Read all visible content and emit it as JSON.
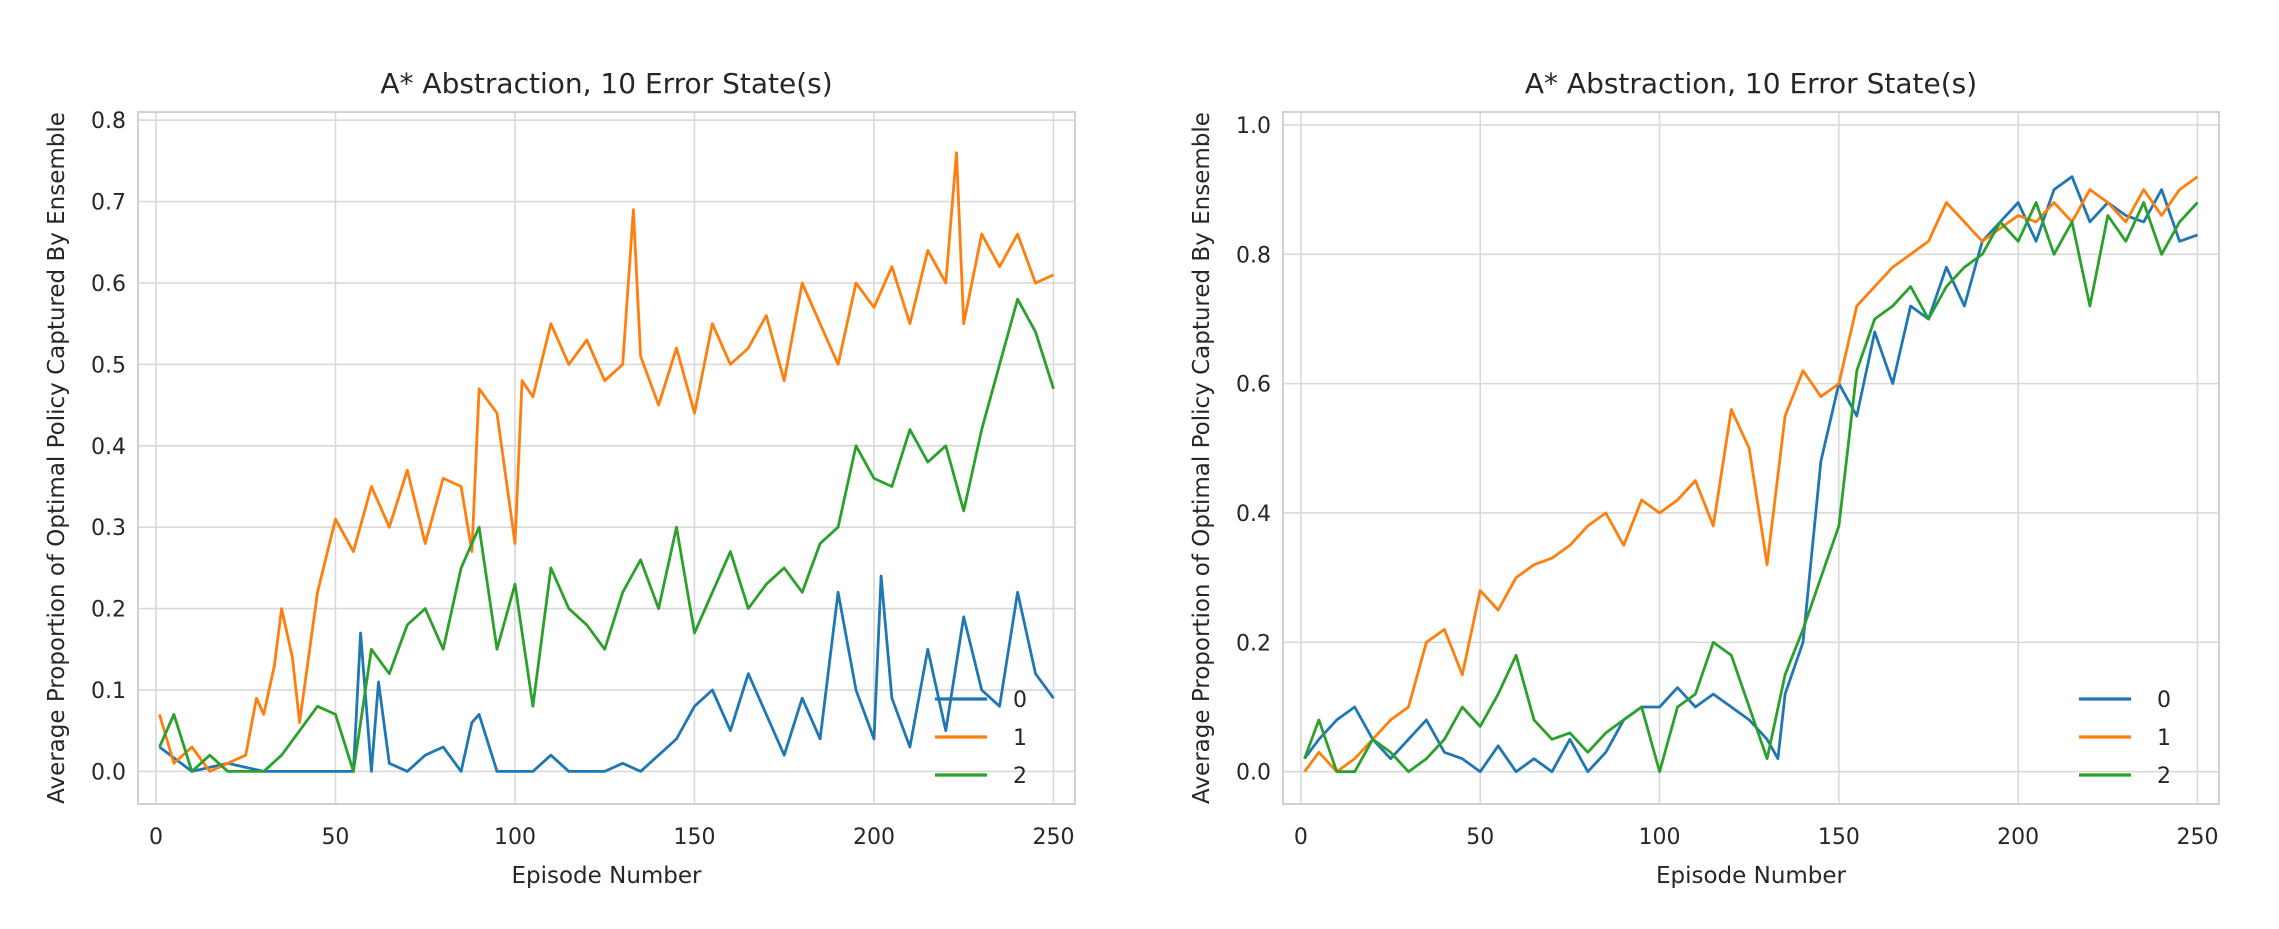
{
  "chart_data": [
    {
      "type": "line",
      "title": "A* Abstraction, 10 Error State(s)",
      "xlabel": "Episode Number",
      "ylabel": "Average Proportion of Optimal Policy Captured By Ensemble",
      "xlim": [
        -5,
        256
      ],
      "ylim": [
        -0.04,
        0.81
      ],
      "xticks": [
        0,
        50,
        100,
        150,
        200,
        250
      ],
      "yticks": [
        0.0,
        0.1,
        0.2,
        0.3,
        0.4,
        0.5,
        0.6,
        0.7,
        0.8
      ],
      "ytick_labels": [
        "0.0",
        "0.1",
        "0.2",
        "0.3",
        "0.4",
        "0.5",
        "0.6",
        "0.7",
        "0.8"
      ],
      "grid": true,
      "legend_position": "lower-right",
      "series": [
        {
          "name": "0",
          "color": "#1f77b4",
          "x": [
            1,
            10,
            20,
            30,
            40,
            50,
            55,
            57,
            60,
            62,
            65,
            70,
            75,
            80,
            85,
            88,
            90,
            95,
            100,
            105,
            110,
            115,
            120,
            125,
            130,
            135,
            140,
            145,
            150,
            155,
            160,
            165,
            170,
            175,
            180,
            185,
            190,
            195,
            200,
            202,
            205,
            210,
            215,
            220,
            225,
            230,
            235,
            240,
            245,
            250
          ],
          "y": [
            0.03,
            0.0,
            0.01,
            0.0,
            0.0,
            0.0,
            0.0,
            0.17,
            0.0,
            0.11,
            0.01,
            0.0,
            0.02,
            0.03,
            0.0,
            0.06,
            0.07,
            0.0,
            0.0,
            0.0,
            0.02,
            0.0,
            0.0,
            0.0,
            0.01,
            0.0,
            0.02,
            0.04,
            0.08,
            0.1,
            0.05,
            0.12,
            0.07,
            0.02,
            0.09,
            0.04,
            0.22,
            0.1,
            0.04,
            0.24,
            0.09,
            0.03,
            0.15,
            0.05,
            0.19,
            0.1,
            0.08,
            0.22,
            0.12,
            0.09
          ]
        },
        {
          "name": "1",
          "color": "#ff7f0e",
          "x": [
            1,
            5,
            10,
            15,
            20,
            25,
            28,
            30,
            33,
            35,
            38,
            40,
            45,
            50,
            55,
            60,
            65,
            70,
            75,
            80,
            85,
            88,
            90,
            95,
            100,
            102,
            105,
            110,
            115,
            120,
            125,
            130,
            133,
            135,
            140,
            145,
            150,
            155,
            160,
            165,
            170,
            175,
            180,
            185,
            190,
            195,
            200,
            205,
            210,
            215,
            220,
            223,
            225,
            230,
            235,
            240,
            245,
            250
          ],
          "y": [
            0.07,
            0.01,
            0.03,
            0.0,
            0.01,
            0.02,
            0.09,
            0.07,
            0.13,
            0.2,
            0.14,
            0.06,
            0.22,
            0.31,
            0.27,
            0.35,
            0.3,
            0.37,
            0.28,
            0.36,
            0.35,
            0.27,
            0.47,
            0.44,
            0.28,
            0.48,
            0.46,
            0.55,
            0.5,
            0.53,
            0.48,
            0.5,
            0.69,
            0.51,
            0.45,
            0.52,
            0.44,
            0.55,
            0.5,
            0.52,
            0.56,
            0.48,
            0.6,
            0.55,
            0.5,
            0.6,
            0.57,
            0.62,
            0.55,
            0.64,
            0.6,
            0.76,
            0.55,
            0.66,
            0.62,
            0.66,
            0.6,
            0.61
          ]
        },
        {
          "name": "2",
          "color": "#2ca02c",
          "x": [
            1,
            5,
            10,
            15,
            20,
            25,
            30,
            35,
            40,
            45,
            50,
            55,
            60,
            65,
            70,
            75,
            80,
            85,
            90,
            95,
            100,
            105,
            110,
            115,
            120,
            125,
            130,
            135,
            140,
            145,
            150,
            155,
            160,
            165,
            170,
            175,
            180,
            185,
            190,
            195,
            200,
            205,
            210,
            215,
            220,
            225,
            230,
            235,
            240,
            245,
            250
          ],
          "y": [
            0.03,
            0.07,
            0.0,
            0.02,
            0.0,
            0.0,
            0.0,
            0.02,
            0.05,
            0.08,
            0.07,
            0.0,
            0.15,
            0.12,
            0.18,
            0.2,
            0.15,
            0.25,
            0.3,
            0.15,
            0.23,
            0.08,
            0.25,
            0.2,
            0.18,
            0.15,
            0.22,
            0.26,
            0.2,
            0.3,
            0.17,
            0.22,
            0.27,
            0.2,
            0.23,
            0.25,
            0.22,
            0.28,
            0.3,
            0.4,
            0.36,
            0.35,
            0.42,
            0.38,
            0.4,
            0.32,
            0.42,
            0.5,
            0.58,
            0.54,
            0.47
          ]
        }
      ]
    },
    {
      "type": "line",
      "title": "A* Abstraction, 10 Error State(s)",
      "xlabel": "Episode Number",
      "ylabel": "Average Proportion of Optimal Policy Captured By Ensemble",
      "xlim": [
        -5,
        256
      ],
      "ylim": [
        -0.05,
        1.02
      ],
      "xticks": [
        0,
        50,
        100,
        150,
        200,
        250
      ],
      "yticks": [
        0.0,
        0.2,
        0.4,
        0.6,
        0.8,
        1.0
      ],
      "ytick_labels": [
        "0.0",
        "0.2",
        "0.4",
        "0.6",
        "0.8",
        "1.0"
      ],
      "grid": true,
      "legend_position": "lower-right",
      "series": [
        {
          "name": "0",
          "color": "#1f77b4",
          "x": [
            1,
            5,
            10,
            15,
            20,
            25,
            30,
            35,
            40,
            45,
            50,
            55,
            60,
            65,
            70,
            75,
            80,
            85,
            90,
            95,
            100,
            105,
            110,
            115,
            120,
            125,
            130,
            133,
            135,
            140,
            145,
            150,
            155,
            160,
            165,
            170,
            175,
            180,
            185,
            190,
            195,
            200,
            205,
            210,
            215,
            220,
            225,
            230,
            235,
            240,
            245,
            250
          ],
          "y": [
            0.02,
            0.05,
            0.08,
            0.1,
            0.05,
            0.02,
            0.05,
            0.08,
            0.03,
            0.02,
            0.0,
            0.04,
            0.0,
            0.02,
            0.0,
            0.05,
            0.0,
            0.03,
            0.08,
            0.1,
            0.1,
            0.13,
            0.1,
            0.12,
            0.1,
            0.08,
            0.05,
            0.02,
            0.12,
            0.2,
            0.48,
            0.6,
            0.55,
            0.68,
            0.6,
            0.72,
            0.7,
            0.78,
            0.72,
            0.82,
            0.85,
            0.88,
            0.82,
            0.9,
            0.92,
            0.85,
            0.88,
            0.86,
            0.85,
            0.9,
            0.82,
            0.83
          ]
        },
        {
          "name": "1",
          "color": "#ff7f0e",
          "x": [
            1,
            5,
            10,
            15,
            20,
            25,
            30,
            35,
            40,
            45,
            50,
            55,
            60,
            65,
            70,
            75,
            80,
            85,
            90,
            95,
            100,
            105,
            110,
            115,
            120,
            125,
            130,
            135,
            140,
            145,
            150,
            155,
            160,
            165,
            170,
            175,
            180,
            185,
            190,
            195,
            200,
            205,
            210,
            215,
            220,
            225,
            230,
            235,
            240,
            245,
            250
          ],
          "y": [
            0.0,
            0.03,
            0.0,
            0.02,
            0.05,
            0.08,
            0.1,
            0.2,
            0.22,
            0.15,
            0.28,
            0.25,
            0.3,
            0.32,
            0.33,
            0.35,
            0.38,
            0.4,
            0.35,
            0.42,
            0.4,
            0.42,
            0.45,
            0.38,
            0.56,
            0.5,
            0.32,
            0.55,
            0.62,
            0.58,
            0.6,
            0.72,
            0.75,
            0.78,
            0.8,
            0.82,
            0.88,
            0.85,
            0.82,
            0.84,
            0.86,
            0.85,
            0.88,
            0.85,
            0.9,
            0.88,
            0.85,
            0.9,
            0.86,
            0.9,
            0.92
          ]
        },
        {
          "name": "2",
          "color": "#2ca02c",
          "x": [
            1,
            5,
            10,
            15,
            20,
            25,
            30,
            35,
            40,
            45,
            50,
            55,
            60,
            65,
            70,
            75,
            80,
            85,
            90,
            95,
            100,
            105,
            110,
            115,
            120,
            125,
            130,
            135,
            140,
            145,
            150,
            155,
            160,
            165,
            170,
            175,
            180,
            185,
            190,
            195,
            200,
            205,
            210,
            215,
            220,
            225,
            230,
            235,
            240,
            245,
            250
          ],
          "y": [
            0.02,
            0.08,
            0.0,
            0.0,
            0.05,
            0.03,
            0.0,
            0.02,
            0.05,
            0.1,
            0.07,
            0.12,
            0.18,
            0.08,
            0.05,
            0.06,
            0.03,
            0.06,
            0.08,
            0.1,
            0.0,
            0.1,
            0.12,
            0.2,
            0.18,
            0.1,
            0.02,
            0.15,
            0.22,
            0.3,
            0.38,
            0.62,
            0.7,
            0.72,
            0.75,
            0.7,
            0.75,
            0.78,
            0.8,
            0.85,
            0.82,
            0.88,
            0.8,
            0.85,
            0.72,
            0.86,
            0.82,
            0.88,
            0.8,
            0.85,
            0.88
          ]
        }
      ]
    }
  ]
}
